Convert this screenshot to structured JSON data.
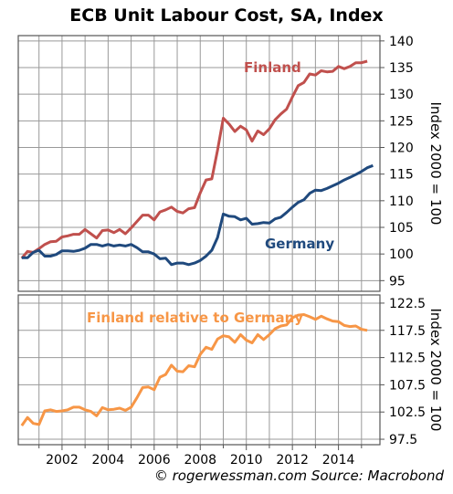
{
  "title": "ECB Unit Labour Cost, SA, Index",
  "credit": "© rogerwessman.com Source: Macrobond",
  "colors": {
    "finland": "#c0504d",
    "germany": "#1f497d",
    "relative": "#f79646",
    "grid": "#999999",
    "frame": "#555555"
  },
  "chart_data": [
    {
      "type": "line",
      "ylabel": "Index 2000 = 100",
      "ylim": [
        93,
        141
      ],
      "yticks": [
        "95",
        "100",
        "105",
        "110",
        "115",
        "120",
        "125",
        "130",
        "135",
        "140"
      ],
      "xlim": [
        2000.1,
        2015.8
      ],
      "xticks": [
        2002,
        2004,
        2006,
        2008,
        2010,
        2012,
        2014
      ],
      "series": [
        {
          "name": "Finland",
          "x": [
            2000.25,
            2000.5,
            2000.75,
            2001.0,
            2001.25,
            2001.5,
            2001.75,
            2002.0,
            2002.25,
            2002.5,
            2002.75,
            2003.0,
            2003.25,
            2003.5,
            2003.75,
            2004.0,
            2004.25,
            2004.5,
            2004.75,
            2005.0,
            2005.25,
            2005.5,
            2005.75,
            2006.0,
            2006.25,
            2006.5,
            2006.75,
            2007.0,
            2007.25,
            2007.5,
            2007.75,
            2008.0,
            2008.25,
            2008.5,
            2008.75,
            2009.0,
            2009.25,
            2009.5,
            2009.75,
            2010.0,
            2010.25,
            2010.5,
            2010.75,
            2011.0,
            2011.25,
            2011.5,
            2011.75,
            2012.0,
            2012.25,
            2012.5,
            2012.75,
            2013.0,
            2013.25,
            2013.5,
            2013.75,
            2014.0,
            2014.25,
            2014.5,
            2014.75,
            2015.0,
            2015.25,
            2015.5
          ],
          "values": [
            99.2,
            100.5,
            100.3,
            101.0,
            101.8,
            102.3,
            102.4,
            103.2,
            103.4,
            103.7,
            103.7,
            104.6,
            103.8,
            103.0,
            104.4,
            104.5,
            104.0,
            104.6,
            103.8,
            104.9,
            106.1,
            107.3,
            107.3,
            106.4,
            107.9,
            108.3,
            108.8,
            108.0,
            107.7,
            108.5,
            108.7,
            111.5,
            113.9,
            114.1,
            119.5,
            125.5,
            124.4,
            123.0,
            124.0,
            123.3,
            121.2,
            123.1,
            122.4,
            123.5,
            125.2,
            126.3,
            127.2,
            129.5,
            131.6,
            132.2,
            133.8,
            133.6,
            134.4,
            134.2,
            134.3,
            135.2,
            134.8,
            135.2,
            135.9,
            135.9,
            136.2,
            null
          ],
          "label_position": "upper-right"
        },
        {
          "name": "Germany",
          "x": [
            2000.25,
            2000.5,
            2000.75,
            2001.0,
            2001.25,
            2001.5,
            2001.75,
            2002.0,
            2002.25,
            2002.5,
            2002.75,
            2003.0,
            2003.25,
            2003.5,
            2003.75,
            2004.0,
            2004.25,
            2004.5,
            2004.75,
            2005.0,
            2005.25,
            2005.5,
            2005.75,
            2006.0,
            2006.25,
            2006.5,
            2006.75,
            2007.0,
            2007.25,
            2007.5,
            2007.75,
            2008.0,
            2008.25,
            2008.5,
            2008.75,
            2009.0,
            2009.25,
            2009.5,
            2009.75,
            2010.0,
            2010.25,
            2010.5,
            2010.75,
            2011.0,
            2011.25,
            2011.5,
            2011.75,
            2012.0,
            2012.25,
            2012.5,
            2012.75,
            2013.0,
            2013.25,
            2013.5,
            2013.75,
            2014.0,
            2014.25,
            2014.5,
            2014.75,
            2015.0,
            2015.25,
            2015.5
          ],
          "values": [
            99.3,
            99.3,
            100.3,
            100.7,
            99.6,
            99.6,
            99.9,
            100.6,
            100.6,
            100.5,
            100.7,
            101.1,
            101.8,
            101.8,
            101.5,
            101.8,
            101.5,
            101.7,
            101.5,
            101.8,
            101.2,
            100.4,
            100.4,
            100.0,
            99.1,
            99.2,
            98.0,
            98.3,
            98.3,
            98.0,
            98.3,
            98.8,
            99.6,
            100.7,
            103.1,
            107.5,
            107.1,
            107.0,
            106.4,
            106.7,
            105.6,
            105.7,
            105.9,
            105.8,
            106.6,
            106.9,
            107.8,
            108.8,
            109.7,
            110.2,
            111.4,
            112.0,
            111.9,
            112.3,
            112.8,
            113.3,
            113.9,
            114.4,
            114.9,
            115.5,
            116.2,
            116.6
          ],
          "label_position": "middle-right"
        }
      ]
    },
    {
      "type": "line",
      "ylabel": "Index 2000 = 100",
      "ylim": [
        96.5,
        124
      ],
      "yticks": [
        "97.5",
        "102.5",
        "107.5",
        "112.5",
        "117.5",
        "122.5"
      ],
      "xlim": [
        2000.1,
        2015.8
      ],
      "xticks": [
        2002,
        2004,
        2006,
        2008,
        2010,
        2012,
        2014
      ],
      "series": [
        {
          "name": "Finland relative to Germany",
          "x": [
            2000.25,
            2000.5,
            2000.75,
            2001.0,
            2001.25,
            2001.5,
            2001.75,
            2002.0,
            2002.25,
            2002.5,
            2002.75,
            2003.0,
            2003.25,
            2003.5,
            2003.75,
            2004.0,
            2004.25,
            2004.5,
            2004.75,
            2005.0,
            2005.25,
            2005.5,
            2005.75,
            2006.0,
            2006.25,
            2006.5,
            2006.75,
            2007.0,
            2007.25,
            2007.5,
            2007.75,
            2008.0,
            2008.25,
            2008.5,
            2008.75,
            2009.0,
            2009.25,
            2009.5,
            2009.75,
            2010.0,
            2010.25,
            2010.5,
            2010.75,
            2011.0,
            2011.25,
            2011.5,
            2011.75,
            2012.0,
            2012.25,
            2012.5,
            2012.75,
            2013.0,
            2013.25,
            2013.5,
            2013.75,
            2014.0,
            2014.25,
            2014.5,
            2014.75,
            2015.0,
            2015.25,
            2015.5
          ],
          "values": [
            100.0,
            101.5,
            100.4,
            100.2,
            102.7,
            102.9,
            102.6,
            102.7,
            102.9,
            103.4,
            103.4,
            102.9,
            102.6,
            101.8,
            103.3,
            102.9,
            103.0,
            103.2,
            102.8,
            103.4,
            105.1,
            107.0,
            107.1,
            106.6,
            108.9,
            109.4,
            111.1,
            110.0,
            109.9,
            111.0,
            110.8,
            113.1,
            114.4,
            114.0,
            115.9,
            116.5,
            116.3,
            115.3,
            116.7,
            115.7,
            115.2,
            116.7,
            115.8,
            116.7,
            117.8,
            118.3,
            118.5,
            119.8,
            120.3,
            120.4,
            120.0,
            119.5,
            120.1,
            119.6,
            119.2,
            119.1,
            118.4,
            118.2,
            118.3,
            117.7,
            117.5,
            null
          ],
          "label_position": "top-left"
        }
      ]
    }
  ]
}
